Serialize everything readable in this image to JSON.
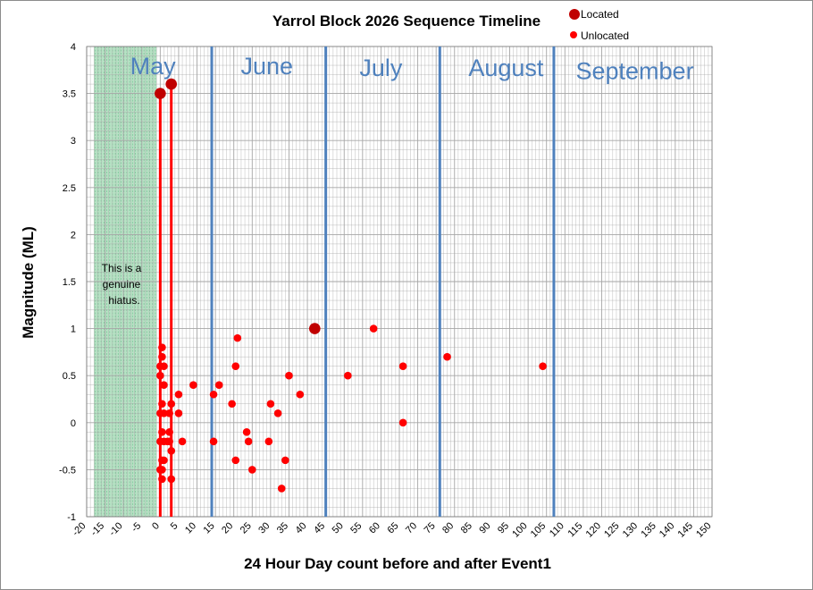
{
  "chart_data": {
    "type": "scatter",
    "title": "Yarrol  Block 2026 Sequence Timeline",
    "xlabel": "24 Hour Day count before and after Event1",
    "ylabel": "Magnitude  (ML)",
    "xlim": [
      -20,
      150
    ],
    "ylim": [
      -1,
      4
    ],
    "x_major_step": 5,
    "x_minor_step": 1,
    "y_major_step": 0.5,
    "y_minor_step": 0.1,
    "grid": true,
    "legend_position": "top-right",
    "x_tick_labels": [
      "-20",
      "-15",
      "-10",
      "-5",
      "0",
      "5",
      "10",
      "15",
      "20",
      "25",
      "30",
      "35",
      "40",
      "45",
      "50",
      "55",
      "60",
      "65",
      "70",
      "75",
      "80",
      "85",
      "90",
      "95",
      "100",
      "105",
      "110",
      "115",
      "120",
      "125",
      "130",
      "135",
      "140",
      "145",
      "150"
    ],
    "y_tick_labels": [
      "-1",
      "-0.5",
      "0",
      "0.5",
      "1",
      "1.5",
      "2",
      "2.5",
      "3",
      "3.5",
      "4"
    ],
    "colors": {
      "located": "#c00000",
      "unlocated": "#ff0000",
      "month_lines": "#4f81bd",
      "event_lines": "#ff0000",
      "hiatus_fill": "#b7e1c4",
      "hiatus_hatch": "#7cc79a",
      "grid": "#a6a6a6"
    },
    "event_lines": [
      0,
      3
    ],
    "hiatus": {
      "x_start": -18,
      "x_end": -1,
      "text_lines": [
        "This is a",
        "genuine",
        "hiatus."
      ]
    },
    "month_boundaries": [
      14,
      45,
      76,
      107
    ],
    "months": [
      {
        "label": "May",
        "x": -2,
        "y": 3.8
      },
      {
        "label": "June",
        "x": 29,
        "y": 3.8
      },
      {
        "label": "July",
        "x": 60,
        "y": 3.78
      },
      {
        "label": "August",
        "x": 94,
        "y": 3.78
      },
      {
        "label": "September",
        "x": 129,
        "y": 3.75
      }
    ],
    "series": [
      {
        "name": "Located",
        "values": [
          {
            "x": 0,
            "y": 3.5
          },
          {
            "x": 3,
            "y": 3.6
          },
          {
            "x": 42,
            "y": 1.0
          }
        ]
      },
      {
        "name": "Unlocated",
        "values": [
          {
            "x": 0.5,
            "y": 0.8
          },
          {
            "x": 0.5,
            "y": 0.7
          },
          {
            "x": 0,
            "y": 0.6
          },
          {
            "x": 1,
            "y": 0.6
          },
          {
            "x": 0,
            "y": 0.5
          },
          {
            "x": 1,
            "y": 0.4
          },
          {
            "x": 0.5,
            "y": 0.2
          },
          {
            "x": 0,
            "y": 0.1
          },
          {
            "x": 1,
            "y": 0.1
          },
          {
            "x": 0.5,
            "y": -0.1
          },
          {
            "x": 0,
            "y": -0.2
          },
          {
            "x": 1,
            "y": -0.2
          },
          {
            "x": 0.5,
            "y": -0.4
          },
          {
            "x": 1,
            "y": -0.4
          },
          {
            "x": 0,
            "y": -0.5
          },
          {
            "x": 0.5,
            "y": -0.5
          },
          {
            "x": 0.5,
            "y": -0.6
          },
          {
            "x": 3,
            "y": 0.2
          },
          {
            "x": 2.5,
            "y": 0.1
          },
          {
            "x": 2.5,
            "y": -0.1
          },
          {
            "x": 2,
            "y": -0.2
          },
          {
            "x": 2.5,
            "y": -0.2
          },
          {
            "x": 3,
            "y": -0.3
          },
          {
            "x": 3,
            "y": -0.6
          },
          {
            "x": 5,
            "y": 0.3
          },
          {
            "x": 5,
            "y": 0.1
          },
          {
            "x": 6,
            "y": -0.2
          },
          {
            "x": 9,
            "y": 0.4
          },
          {
            "x": 14.5,
            "y": 0.3
          },
          {
            "x": 14.5,
            "y": -0.2
          },
          {
            "x": 16,
            "y": 0.4
          },
          {
            "x": 19.5,
            "y": 0.2
          },
          {
            "x": 20.5,
            "y": 0.6
          },
          {
            "x": 21,
            "y": 0.9
          },
          {
            "x": 20.5,
            "y": -0.4
          },
          {
            "x": 23.5,
            "y": -0.1
          },
          {
            "x": 24,
            "y": -0.2
          },
          {
            "x": 25,
            "y": -0.5
          },
          {
            "x": 29.5,
            "y": -0.2
          },
          {
            "x": 30,
            "y": 0.2
          },
          {
            "x": 32,
            "y": 0.1
          },
          {
            "x": 33,
            "y": -0.7
          },
          {
            "x": 34,
            "y": -0.4
          },
          {
            "x": 35,
            "y": 0.5
          },
          {
            "x": 38,
            "y": 0.3
          },
          {
            "x": 51,
            "y": 0.5
          },
          {
            "x": 58,
            "y": 1.0
          },
          {
            "x": 66,
            "y": 0.6
          },
          {
            "x": 66,
            "y": 0.0
          },
          {
            "x": 78,
            "y": 0.7
          },
          {
            "x": 104,
            "y": 0.6
          }
        ]
      }
    ]
  }
}
